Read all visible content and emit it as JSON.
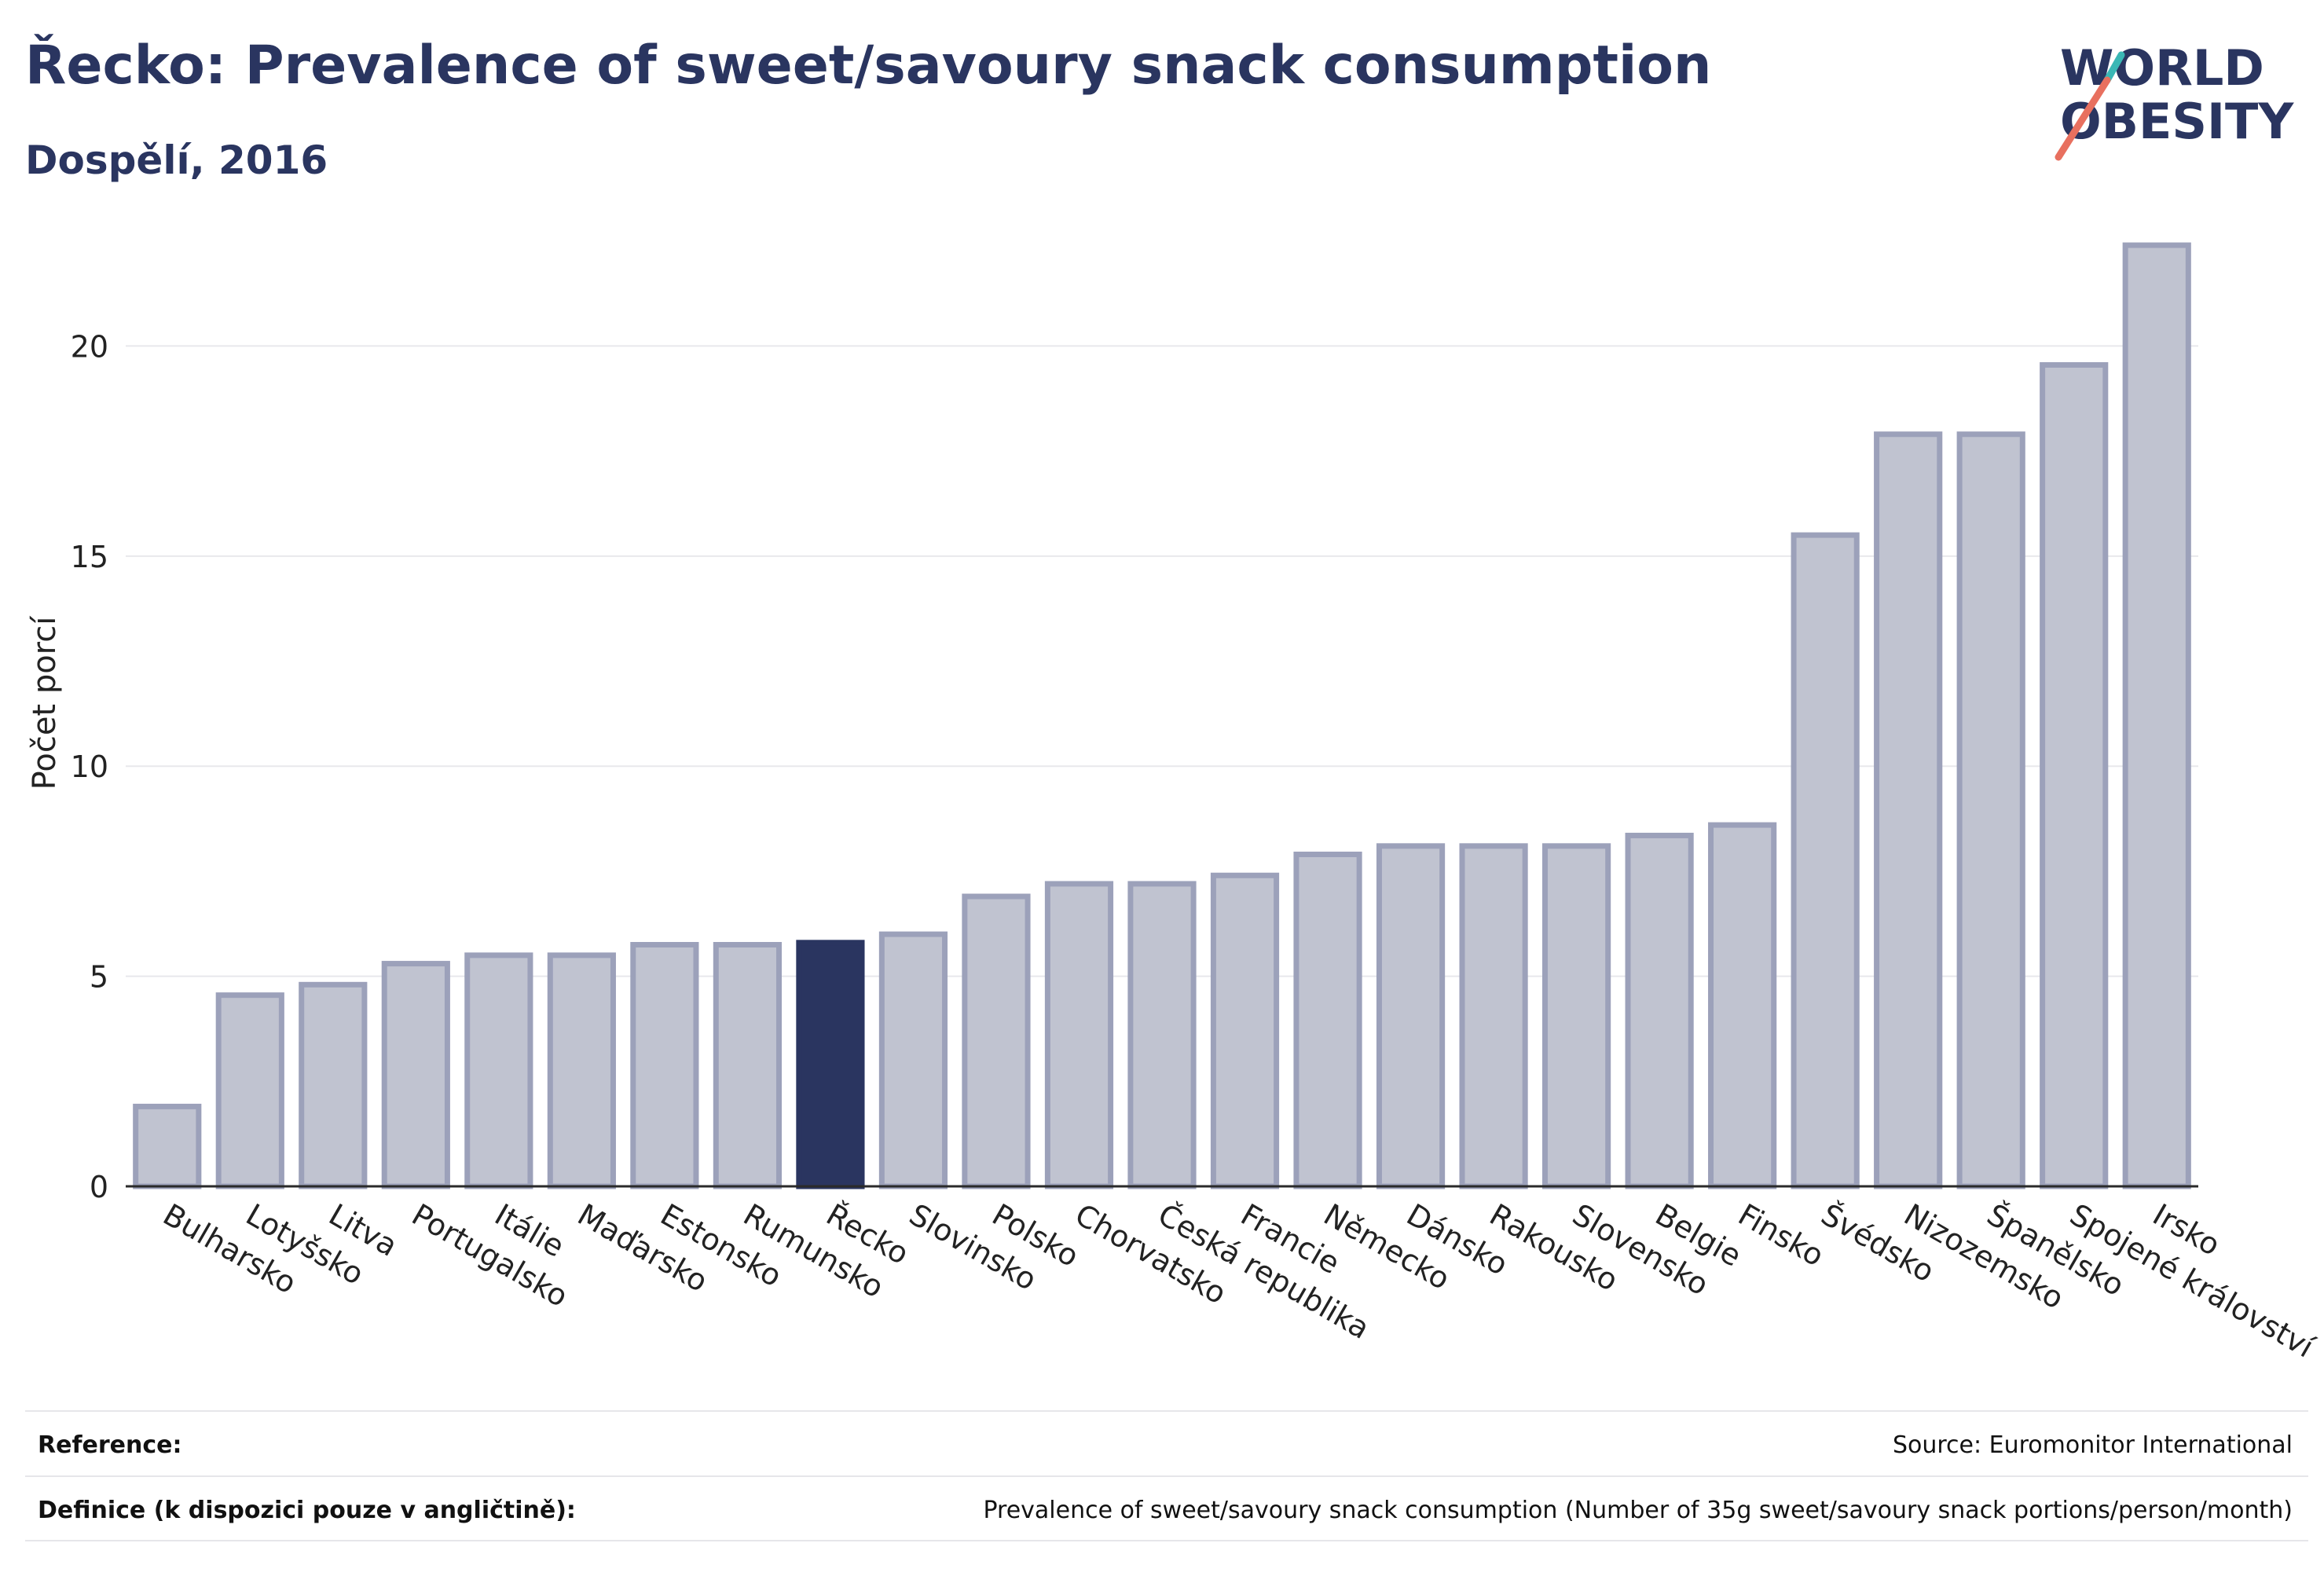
{
  "header": {
    "title": "Řecko: Prevalence of sweet/savoury snack consumption",
    "subtitle": "Dospělí, 2016"
  },
  "logo": {
    "line1": "WORLD",
    "line2": "OBESITY"
  },
  "colors": {
    "bar": "#c0c3d0",
    "bar_stroke": "#9ca1ba",
    "highlight": "#2a3560",
    "text": "#2a3560",
    "logo_teal": "#3ab7b5",
    "logo_coral": "#e8705f",
    "grid": "#e8e8ec"
  },
  "chart_data": {
    "type": "bar",
    "ylabel": "Počet porcí",
    "xlabel": "",
    "ylim": [
      0,
      23
    ],
    "yticks": [
      0,
      5,
      10,
      15,
      20
    ],
    "grid": true,
    "highlight": "Řecko",
    "categories": [
      "Bulharsko",
      "Lotyšsko",
      "Litva",
      "Portugalsko",
      "Itálie",
      "Maďarsko",
      "Estonsko",
      "Rumunsko",
      "Řecko",
      "Slovinsko",
      "Polsko",
      "Chorvatsko",
      "Česká republika",
      "Francie",
      "Německo",
      "Dánsko",
      "Rakousko",
      "Slovensko",
      "Belgie",
      "Finsko",
      "Švédsko",
      "Nizozemsko",
      "Španělsko",
      "Spojené království",
      "Irsko"
    ],
    "values": [
      1.9,
      4.55,
      4.8,
      5.3,
      5.5,
      5.5,
      5.75,
      5.75,
      5.8,
      6.0,
      6.9,
      7.2,
      7.2,
      7.4,
      7.9,
      8.1,
      8.1,
      8.1,
      8.35,
      8.6,
      15.5,
      17.9,
      17.9,
      19.55,
      22.4
    ]
  },
  "footer": {
    "reference_label": "Reference:",
    "reference_value": "Source: Euromonitor International",
    "definition_label": "Definice (k dispozici pouze v angličtině):",
    "definition_value": "Prevalence of sweet/savoury snack consumption (Number of 35g sweet/savoury snack portions/person/month)"
  }
}
